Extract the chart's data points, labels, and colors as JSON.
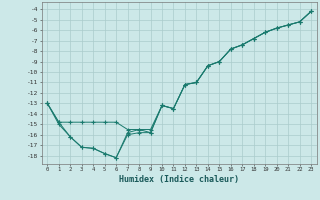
{
  "title": "",
  "xlabel": "Humidex (Indice chaleur)",
  "background_color": "#cce8e8",
  "grid_color": "#aacccc",
  "line_color": "#1a7a6e",
  "xlim": [
    -0.5,
    23.5
  ],
  "ylim": [
    -18.8,
    -3.3
  ],
  "yticks": [
    -4,
    -5,
    -6,
    -7,
    -8,
    -9,
    -10,
    -11,
    -12,
    -13,
    -14,
    -15,
    -16,
    -17,
    -18
  ],
  "xticks": [
    0,
    1,
    2,
    3,
    4,
    5,
    6,
    7,
    8,
    9,
    10,
    11,
    12,
    13,
    14,
    15,
    16,
    17,
    18,
    19,
    20,
    21,
    22,
    23
  ],
  "line1_x": [
    0,
    1,
    2,
    3,
    4,
    5,
    6,
    7,
    8,
    9,
    10,
    11,
    12,
    13,
    14,
    15,
    16,
    17,
    18,
    19,
    20,
    21,
    22,
    23
  ],
  "line1_y": [
    -13,
    -14.8,
    -16.2,
    -17.2,
    -17.3,
    -17.8,
    -18.2,
    -16.0,
    -15.8,
    -15.8,
    -13.2,
    -13.5,
    -11.2,
    -11.0,
    -9.4,
    -9.0,
    -7.8,
    -7.4,
    -6.8,
    -6.2,
    -5.8,
    -5.5,
    -5.2,
    -4.2
  ],
  "line2_x": [
    0,
    1,
    2,
    3,
    4,
    5,
    6,
    7,
    8,
    9,
    10,
    11,
    12,
    13,
    14,
    15,
    16,
    17,
    18,
    19,
    20,
    21,
    22,
    23
  ],
  "line2_y": [
    -13,
    -14.8,
    -14.8,
    -14.8,
    -14.8,
    -14.8,
    -14.8,
    -15.5,
    -15.5,
    -15.5,
    -13.2,
    -13.5,
    -11.2,
    -11.0,
    -9.4,
    -9.0,
    -7.8,
    -7.4,
    -6.8,
    -6.2,
    -5.8,
    -5.5,
    -5.2,
    -4.2
  ],
  "line3_x": [
    0,
    1,
    2,
    3,
    4,
    5,
    6,
    7,
    8,
    9,
    10,
    11,
    12,
    13,
    14,
    15,
    16,
    17,
    18,
    19,
    20,
    21,
    22,
    23
  ],
  "line3_y": [
    -13,
    -15.0,
    -16.2,
    -17.2,
    -17.3,
    -17.8,
    -18.2,
    -15.8,
    -15.5,
    -15.8,
    -13.2,
    -13.5,
    -11.2,
    -11.0,
    -9.4,
    -9.0,
    -7.8,
    -7.4,
    -6.8,
    -6.2,
    -5.8,
    -5.5,
    -5.2,
    -4.2
  ]
}
